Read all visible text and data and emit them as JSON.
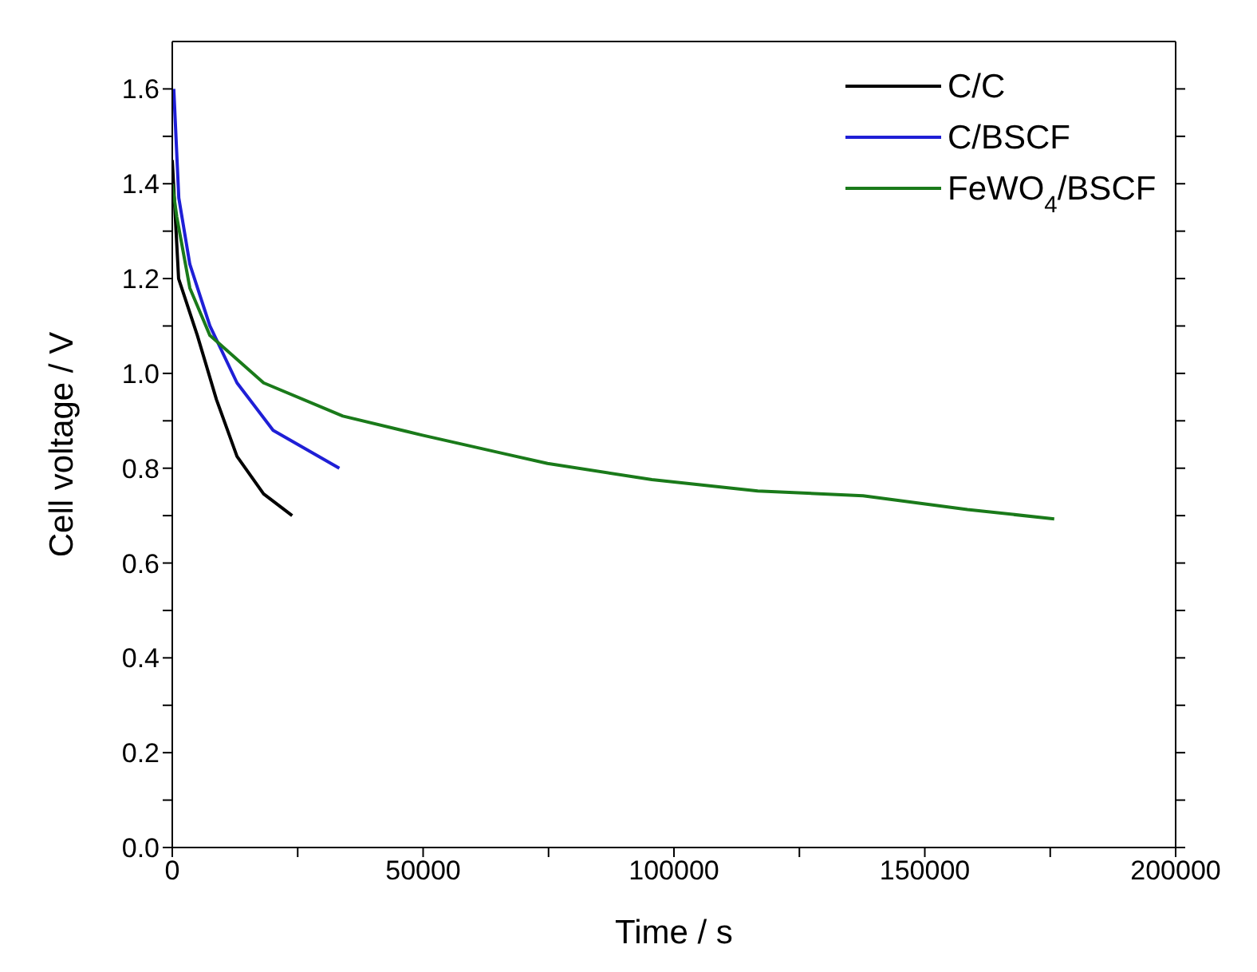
{
  "chart_data": {
    "type": "line",
    "xlabel": "Time / s",
    "ylabel": "Cell voltage / V",
    "xlim": [
      0,
      200000
    ],
    "xticks": [
      0,
      {
        "value": 25000,
        "label": null
      },
      50000,
      {
        "value": 75000,
        "label": null
      },
      100000,
      {
        "value": 125000,
        "label": null
      },
      150000,
      {
        "value": 175000,
        "label": null
      },
      200000
    ],
    "ylim": [
      0,
      1.7
    ],
    "yticks": [
      {
        "value": 0,
        "label": "0.0"
      },
      {
        "value": 0.1,
        "label": null
      },
      0.2,
      {
        "value": 0.3,
        "label": null
      },
      0.4,
      {
        "value": 0.5,
        "label": null
      },
      0.6,
      {
        "value": 0.7,
        "label": null
      },
      0.8,
      {
        "value": 0.9,
        "label": null
      },
      {
        "value": 1,
        "label": "1.0"
      },
      {
        "value": 1.1,
        "label": null
      },
      1.2,
      {
        "value": 1.3,
        "label": null
      },
      1.4,
      {
        "value": 1.5,
        "label": null
      },
      1.6
    ],
    "legend": "top right",
    "marker": "none",
    "line_style": "solid",
    "series": [
      {
        "name": "C/C",
        "color": "#000000",
        "x": [
          0,
          1260,
          5000,
          8800,
          12900,
          18200,
          23900
        ],
        "values": [
          1.45,
          1.2,
          1.08,
          0.945,
          0.825,
          0.746,
          0.7
        ]
      },
      {
        "name": "C/BSCF",
        "color": "#1f1fd6",
        "x": [
          300,
          1300,
          3500,
          7500,
          12900,
          20100,
          33300
        ],
        "values": [
          1.6,
          1.37,
          1.23,
          1.1,
          0.98,
          0.88,
          0.8
        ]
      },
      {
        "name": "FeWO$_{4}$/BSCF",
        "color": "#1a7a1a",
        "x": [
          0,
          900,
          3500,
          7500,
          18200,
          34000,
          49700,
          66400,
          74800,
          95600,
          116700,
          137700,
          158500,
          175800
        ],
        "values": [
          1.4,
          1.33,
          1.18,
          1.08,
          0.98,
          0.91,
          0.87,
          0.83,
          0.81,
          0.776,
          0.752,
          0.742,
          0.713,
          0.693
        ]
      }
    ]
  }
}
